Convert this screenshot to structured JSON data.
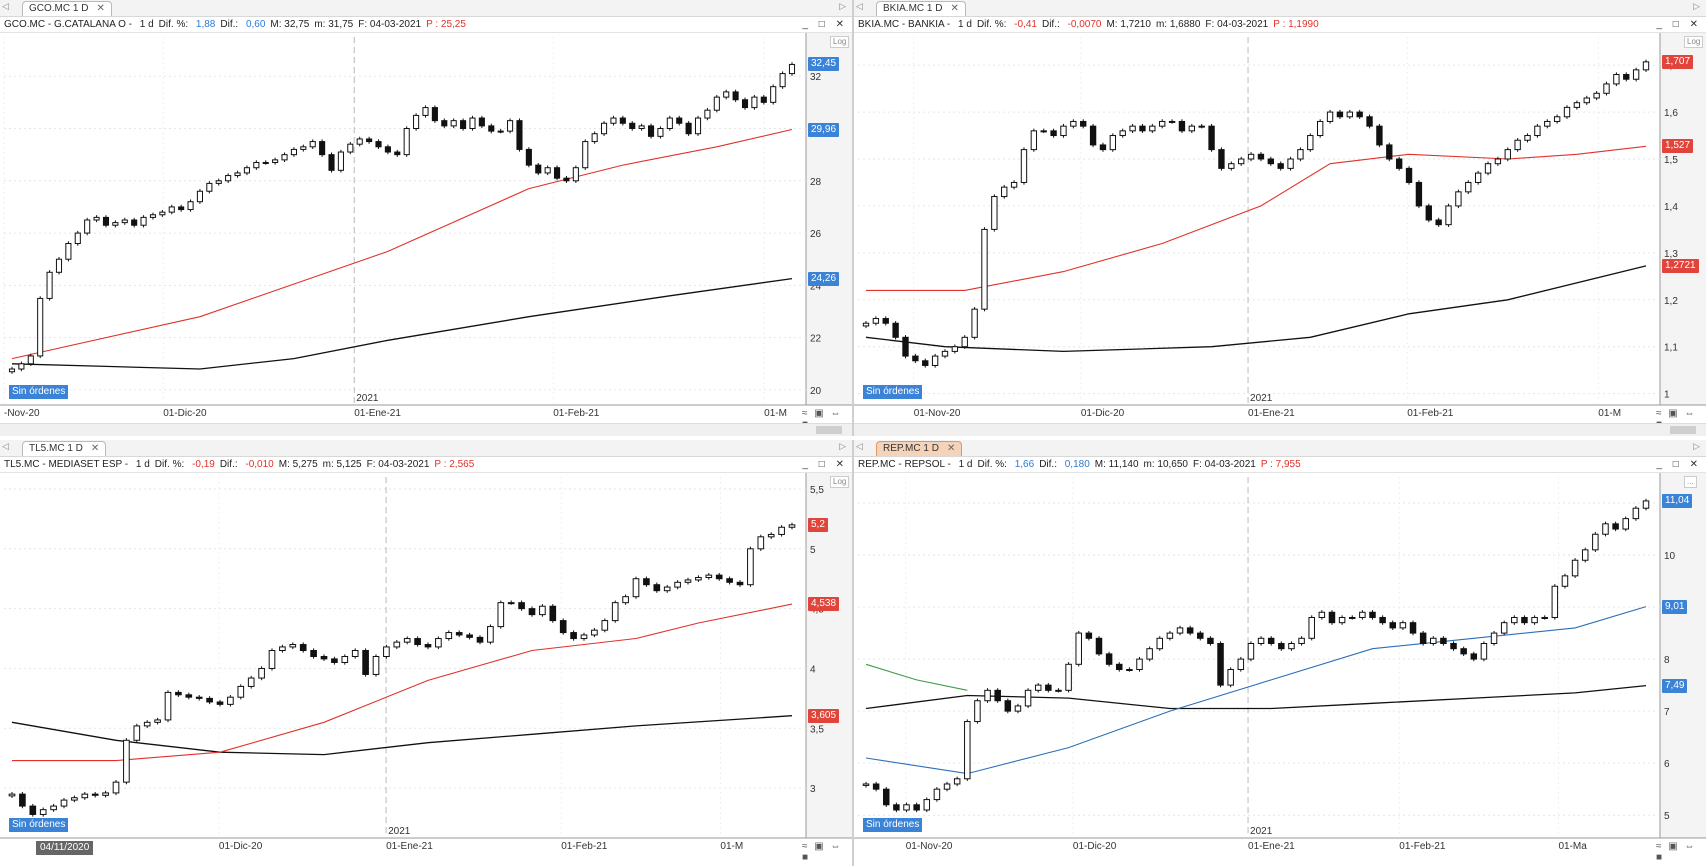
{
  "panes": [
    {
      "tab": "GCO.MC 1 D",
      "active": false,
      "close": "✕",
      "info": [
        [
          "GCO.MC - G.CATALANA O - ",
          "k"
        ],
        [
          "1 d",
          "k"
        ],
        [
          "Dif. %: ",
          "k"
        ],
        [
          "1,88",
          "blue"
        ],
        [
          "Dif.: ",
          "k"
        ],
        [
          "0,60",
          "blue"
        ],
        [
          "M: 32,75",
          "k"
        ],
        [
          "m: 31,75",
          "k"
        ],
        [
          "F: 04-03-2021",
          "k"
        ],
        [
          "P : 25,25",
          "red"
        ]
      ],
      "window_buttons": "_ □ ✕",
      "log_label": "Log",
      "year_label": "2021",
      "sin_ordenes": "Sin órdenes",
      "xticks": [
        "-Nov-20",
        "01-Dic-20",
        "01-Ene-21",
        "01-Feb-21",
        "01-M"
      ],
      "ytick_labels": [
        "32",
        "30",
        "28",
        "26",
        "24",
        "22",
        "20"
      ],
      "tags": [
        {
          "text": "32,45",
          "color": "#3a83d6"
        },
        {
          "text": "29,96",
          "color": "#3a83d6"
        },
        {
          "text": "24,26",
          "color": "#3a83d6"
        }
      ]
    },
    {
      "tab": "BKIA.MC 1 D",
      "active": false,
      "close": "✕",
      "info": [
        [
          "BKIA.MC - BANKIA - ",
          "k"
        ],
        [
          "1 d",
          "k"
        ],
        [
          "Dif. %: ",
          "k"
        ],
        [
          "-0,41",
          "red"
        ],
        [
          "Dif.: ",
          "k"
        ],
        [
          "-0,0070",
          "red"
        ],
        [
          "M: 1,7210",
          "k"
        ],
        [
          "m: 1,6880",
          "k"
        ],
        [
          "F: 04-03-2021",
          "k"
        ],
        [
          "P : 1,1990",
          "red"
        ]
      ],
      "window_buttons": "_ □ ✕",
      "log_label": "Log",
      "year_label": "2021",
      "sin_ordenes": "Sin órdenes",
      "xticks": [
        "01-Nov-20",
        "01-Dic-20",
        "01-Ene-21",
        "01-Feb-21",
        "01-M"
      ],
      "ytick_labels": [
        "1,7",
        "1,6",
        "1,5",
        "1,4",
        "1,3",
        "1,2",
        "1,1",
        "1"
      ],
      "tags": [
        {
          "text": "1,707",
          "color": "#e0443b"
        },
        {
          "text": "1,527",
          "color": "#e0443b"
        },
        {
          "text": "1,2721",
          "color": "#e0443b"
        }
      ]
    },
    {
      "tab": "TL5.MC 1 D",
      "active": false,
      "close": "✕",
      "info": [
        [
          "TL5.MC - MEDIASET ESP - ",
          "k"
        ],
        [
          "1 d",
          "k"
        ],
        [
          "Dif. %: ",
          "k"
        ],
        [
          "-0,19",
          "red"
        ],
        [
          "Dif.: ",
          "k"
        ],
        [
          "-0,010",
          "red"
        ],
        [
          "M: 5,275",
          "k"
        ],
        [
          "m: 5,125",
          "k"
        ],
        [
          "F: 04-03-2021",
          "k"
        ],
        [
          "P : 2,565",
          "red"
        ]
      ],
      "window_buttons": "_ □ ✕",
      "log_label": "Log",
      "year_label": "2021",
      "sin_ordenes": "Sin órdenes",
      "date_badge": "04/11/2020",
      "xticks": [
        "01-Dic-20",
        "01-Ene-21",
        "01-Feb-21",
        "01-M"
      ],
      "ytick_labels": [
        "5,5",
        "5",
        "4,5",
        "4",
        "3,5",
        "3"
      ],
      "tags": [
        {
          "text": "5,2",
          "color": "#e0443b"
        },
        {
          "text": "4,538",
          "color": "#e0443b"
        },
        {
          "text": "3,605",
          "color": "#e0443b"
        }
      ]
    },
    {
      "tab": "REP.MC 1 D",
      "active": true,
      "close": "✕",
      "info": [
        [
          "REP.MC - REPSOL - ",
          "k"
        ],
        [
          "1 d",
          "k"
        ],
        [
          "Dif. %: ",
          "k"
        ],
        [
          "1,66",
          "blue"
        ],
        [
          "Dif.: ",
          "k"
        ],
        [
          "0,180",
          "blue"
        ],
        [
          "M: 11,140",
          "k"
        ],
        [
          "m: 10,650",
          "k"
        ],
        [
          "F: 04-03-2021",
          "k"
        ],
        [
          "P : 7,955",
          "red"
        ]
      ],
      "window_buttons": "_ □ ✕",
      "log_label": "...",
      "year_label": "2021",
      "sin_ordenes": "Sin órdenes",
      "xticks": [
        "01-Nov-20",
        "01-Dic-20",
        "01-Ene-21",
        "01-Feb-21",
        "01-Ma"
      ],
      "ytick_labels": [
        "11",
        "10",
        "9",
        "8",
        "7",
        "6",
        "5"
      ],
      "tags": [
        {
          "text": "11,04",
          "color": "#3a83d6"
        },
        {
          "text": "9,01",
          "color": "#3a83d6"
        },
        {
          "text": "7,49",
          "color": "#3a83d6"
        }
      ]
    }
  ],
  "chart_data": [
    {
      "type": "candlestick",
      "symbol": "GCO.MC",
      "ylim": [
        19.5,
        33.5
      ],
      "ma1_color": "#e0322b",
      "ma2_color": "#111111",
      "last": 32.45,
      "ma1_last": 29.96,
      "ma2_last": 24.26,
      "closes": [
        20.8,
        21.0,
        21.3,
        23.5,
        24.5,
        25.0,
        25.6,
        26.0,
        26.5,
        26.6,
        26.3,
        26.4,
        26.5,
        26.3,
        26.6,
        26.7,
        26.8,
        27.0,
        26.9,
        27.2,
        27.6,
        27.9,
        28.0,
        28.2,
        28.3,
        28.5,
        28.7,
        28.7,
        28.8,
        29.0,
        29.2,
        29.3,
        29.5,
        29.0,
        28.4,
        29.1,
        29.4,
        29.6,
        29.5,
        29.3,
        29.1,
        29.0,
        30.0,
        30.5,
        30.8,
        30.3,
        30.1,
        30.3,
        30.0,
        30.4,
        30.1,
        29.9,
        29.9,
        30.3,
        29.2,
        28.6,
        28.3,
        28.5,
        28.1,
        28.0,
        28.5,
        29.5,
        29.8,
        30.2,
        30.4,
        30.2,
        30.0,
        30.1,
        29.7,
        30.0,
        30.4,
        30.2,
        29.8,
        30.4,
        30.7,
        31.2,
        31.4,
        31.1,
        30.8,
        31.2,
        31.0,
        31.6,
        32.1,
        32.45
      ],
      "ma1_points": [
        [
          0,
          21.2
        ],
        [
          20,
          22.8
        ],
        [
          40,
          25.3
        ],
        [
          55,
          27.7
        ],
        [
          65,
          28.6
        ],
        [
          75,
          29.3
        ],
        [
          83,
          29.96
        ]
      ],
      "ma2_points": [
        [
          0,
          21.0
        ],
        [
          10,
          20.9
        ],
        [
          20,
          20.8
        ],
        [
          30,
          21.2
        ],
        [
          40,
          21.9
        ],
        [
          55,
          22.8
        ],
        [
          70,
          23.6
        ],
        [
          83,
          24.26
        ]
      ]
    },
    {
      "type": "candlestick",
      "symbol": "BKIA.MC",
      "ylim": [
        0.98,
        1.76
      ],
      "ma1_color": "#e0322b",
      "ma2_color": "#111111",
      "last": 1.707,
      "ma1_last": 1.527,
      "ma2_last": 1.2721,
      "closes": [
        1.15,
        1.16,
        1.15,
        1.12,
        1.08,
        1.07,
        1.06,
        1.08,
        1.09,
        1.1,
        1.12,
        1.18,
        1.35,
        1.42,
        1.44,
        1.45,
        1.52,
        1.56,
        1.56,
        1.55,
        1.57,
        1.58,
        1.57,
        1.53,
        1.52,
        1.55,
        1.56,
        1.57,
        1.56,
        1.57,
        1.58,
        1.58,
        1.56,
        1.57,
        1.57,
        1.52,
        1.48,
        1.49,
        1.5,
        1.51,
        1.5,
        1.49,
        1.48,
        1.5,
        1.52,
        1.55,
        1.58,
        1.6,
        1.59,
        1.6,
        1.59,
        1.57,
        1.53,
        1.5,
        1.48,
        1.45,
        1.4,
        1.37,
        1.36,
        1.4,
        1.43,
        1.45,
        1.47,
        1.49,
        1.5,
        1.52,
        1.54,
        1.55,
        1.57,
        1.58,
        1.59,
        1.61,
        1.62,
        1.63,
        1.64,
        1.66,
        1.68,
        1.67,
        1.69,
        1.707
      ],
      "ma1_points": [
        [
          0,
          1.22
        ],
        [
          10,
          1.22
        ],
        [
          20,
          1.26
        ],
        [
          30,
          1.32
        ],
        [
          40,
          1.4
        ],
        [
          47,
          1.49
        ],
        [
          55,
          1.51
        ],
        [
          65,
          1.5
        ],
        [
          72,
          1.51
        ],
        [
          79,
          1.527
        ]
      ],
      "ma2_points": [
        [
          0,
          1.12
        ],
        [
          8,
          1.1
        ],
        [
          20,
          1.09
        ],
        [
          35,
          1.1
        ],
        [
          45,
          1.12
        ],
        [
          55,
          1.17
        ],
        [
          65,
          1.2
        ],
        [
          79,
          1.2721
        ]
      ]
    },
    {
      "type": "candlestick",
      "symbol": "TL5.MC",
      "ylim": [
        2.6,
        5.6
      ],
      "ma1_color": "#e0322b",
      "ma2_color": "#111111",
      "last": 5.2,
      "ma1_last": 4.538,
      "ma2_last": 3.605,
      "closes": [
        2.95,
        2.85,
        2.78,
        2.82,
        2.85,
        2.9,
        2.92,
        2.95,
        2.94,
        2.96,
        3.05,
        3.4,
        3.52,
        3.55,
        3.57,
        3.8,
        3.78,
        3.76,
        3.75,
        3.72,
        3.7,
        3.76,
        3.85,
        3.92,
        4.0,
        4.15,
        4.18,
        4.2,
        4.15,
        4.1,
        4.08,
        4.05,
        4.1,
        4.15,
        3.95,
        4.1,
        4.18,
        4.22,
        4.25,
        4.2,
        4.18,
        4.25,
        4.3,
        4.28,
        4.26,
        4.22,
        4.35,
        4.55,
        4.55,
        4.5,
        4.45,
        4.52,
        4.4,
        4.3,
        4.25,
        4.28,
        4.32,
        4.4,
        4.55,
        4.6,
        4.75,
        4.7,
        4.65,
        4.68,
        4.72,
        4.74,
        4.76,
        4.78,
        4.75,
        4.72,
        4.7,
        5.0,
        5.1,
        5.12,
        5.18,
        5.2
      ],
      "ma1_points": [
        [
          0,
          3.23
        ],
        [
          10,
          3.23
        ],
        [
          20,
          3.3
        ],
        [
          30,
          3.55
        ],
        [
          40,
          3.9
        ],
        [
          50,
          4.15
        ],
        [
          60,
          4.25
        ],
        [
          66,
          4.38
        ],
        [
          75,
          4.538
        ]
      ],
      "ma2_points": [
        [
          0,
          3.55
        ],
        [
          10,
          3.4
        ],
        [
          20,
          3.3
        ],
        [
          30,
          3.28
        ],
        [
          40,
          3.38
        ],
        [
          50,
          3.45
        ],
        [
          60,
          3.52
        ],
        [
          75,
          3.605
        ]
      ]
    },
    {
      "type": "candlestick",
      "symbol": "REP.MC",
      "ylim": [
        4.6,
        11.5
      ],
      "ma1_color": "#2c6fb8",
      "ma2_color": "#111111",
      "last": 11.04,
      "ma1_last": 9.01,
      "ma2_last": 7.49,
      "closes": [
        5.6,
        5.5,
        5.2,
        5.1,
        5.2,
        5.1,
        5.3,
        5.5,
        5.6,
        5.7,
        6.8,
        7.2,
        7.4,
        7.2,
        7.0,
        7.1,
        7.4,
        7.5,
        7.4,
        7.4,
        7.9,
        8.5,
        8.4,
        8.1,
        7.9,
        7.8,
        7.8,
        8.0,
        8.2,
        8.4,
        8.5,
        8.6,
        8.5,
        8.4,
        8.3,
        7.5,
        7.8,
        8.0,
        8.3,
        8.4,
        8.3,
        8.2,
        8.3,
        8.4,
        8.8,
        8.9,
        8.7,
        8.8,
        8.8,
        8.9,
        8.8,
        8.7,
        8.6,
        8.7,
        8.5,
        8.3,
        8.4,
        8.3,
        8.2,
        8.1,
        8.0,
        8.3,
        8.5,
        8.7,
        8.8,
        8.7,
        8.8,
        8.8,
        9.4,
        9.6,
        9.9,
        10.1,
        10.4,
        10.6,
        10.5,
        10.7,
        10.9,
        11.04
      ],
      "ma1_points": [
        [
          0,
          6.1
        ],
        [
          10,
          5.8
        ],
        [
          20,
          6.3
        ],
        [
          30,
          7.0
        ],
        [
          40,
          7.6
        ],
        [
          50,
          8.2
        ],
        [
          60,
          8.4
        ],
        [
          70,
          8.6
        ],
        [
          77,
          9.01
        ]
      ],
      "ma1b_points": [
        [
          0,
          7.9
        ],
        [
          5,
          7.6
        ],
        [
          10,
          7.4
        ]
      ],
      "ma1b_color": "#3d9a4a",
      "ma2_points": [
        [
          0,
          7.05
        ],
        [
          10,
          7.3
        ],
        [
          20,
          7.25
        ],
        [
          30,
          7.05
        ],
        [
          40,
          7.05
        ],
        [
          50,
          7.15
        ],
        [
          60,
          7.25
        ],
        [
          70,
          7.35
        ],
        [
          77,
          7.49
        ]
      ]
    }
  ]
}
